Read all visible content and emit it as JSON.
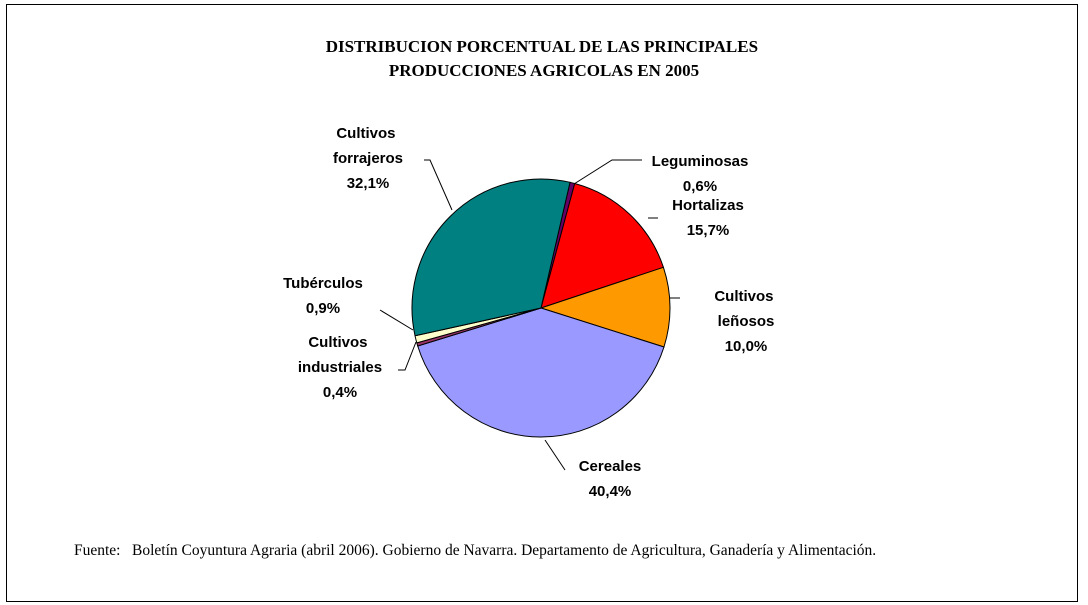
{
  "chart_data": {
    "type": "pie",
    "title": "DISTRIBUCION PORCENTUAL DE LAS PRINCIPALES PRODUCCIONES AGRICOLAS EN 2005",
    "categories": [
      "Leguminosas",
      "Hortalizas",
      "Cultivos leñosos",
      "Cereales",
      "Cultivos industriales",
      "Tubérculos",
      "Cultivos forrajeros"
    ],
    "values": [
      0.6,
      15.7,
      10.0,
      40.4,
      0.4,
      0.9,
      32.1
    ],
    "value_labels": [
      "0,6%",
      "15,7%",
      "10,0%",
      "40,4%",
      "0,4%",
      "0,9%",
      "32,1%"
    ],
    "colors": [
      "#660066",
      "#ff0000",
      "#ff9900",
      "#9999ff",
      "#993366",
      "#ffffcc",
      "#008080"
    ]
  },
  "source_label": "Fuente:",
  "source": "Boletín Coyuntura Agraria (abril 2006). Gobierno de Navarra. Departamento de Agricultura, Ganadería y Alimentación."
}
